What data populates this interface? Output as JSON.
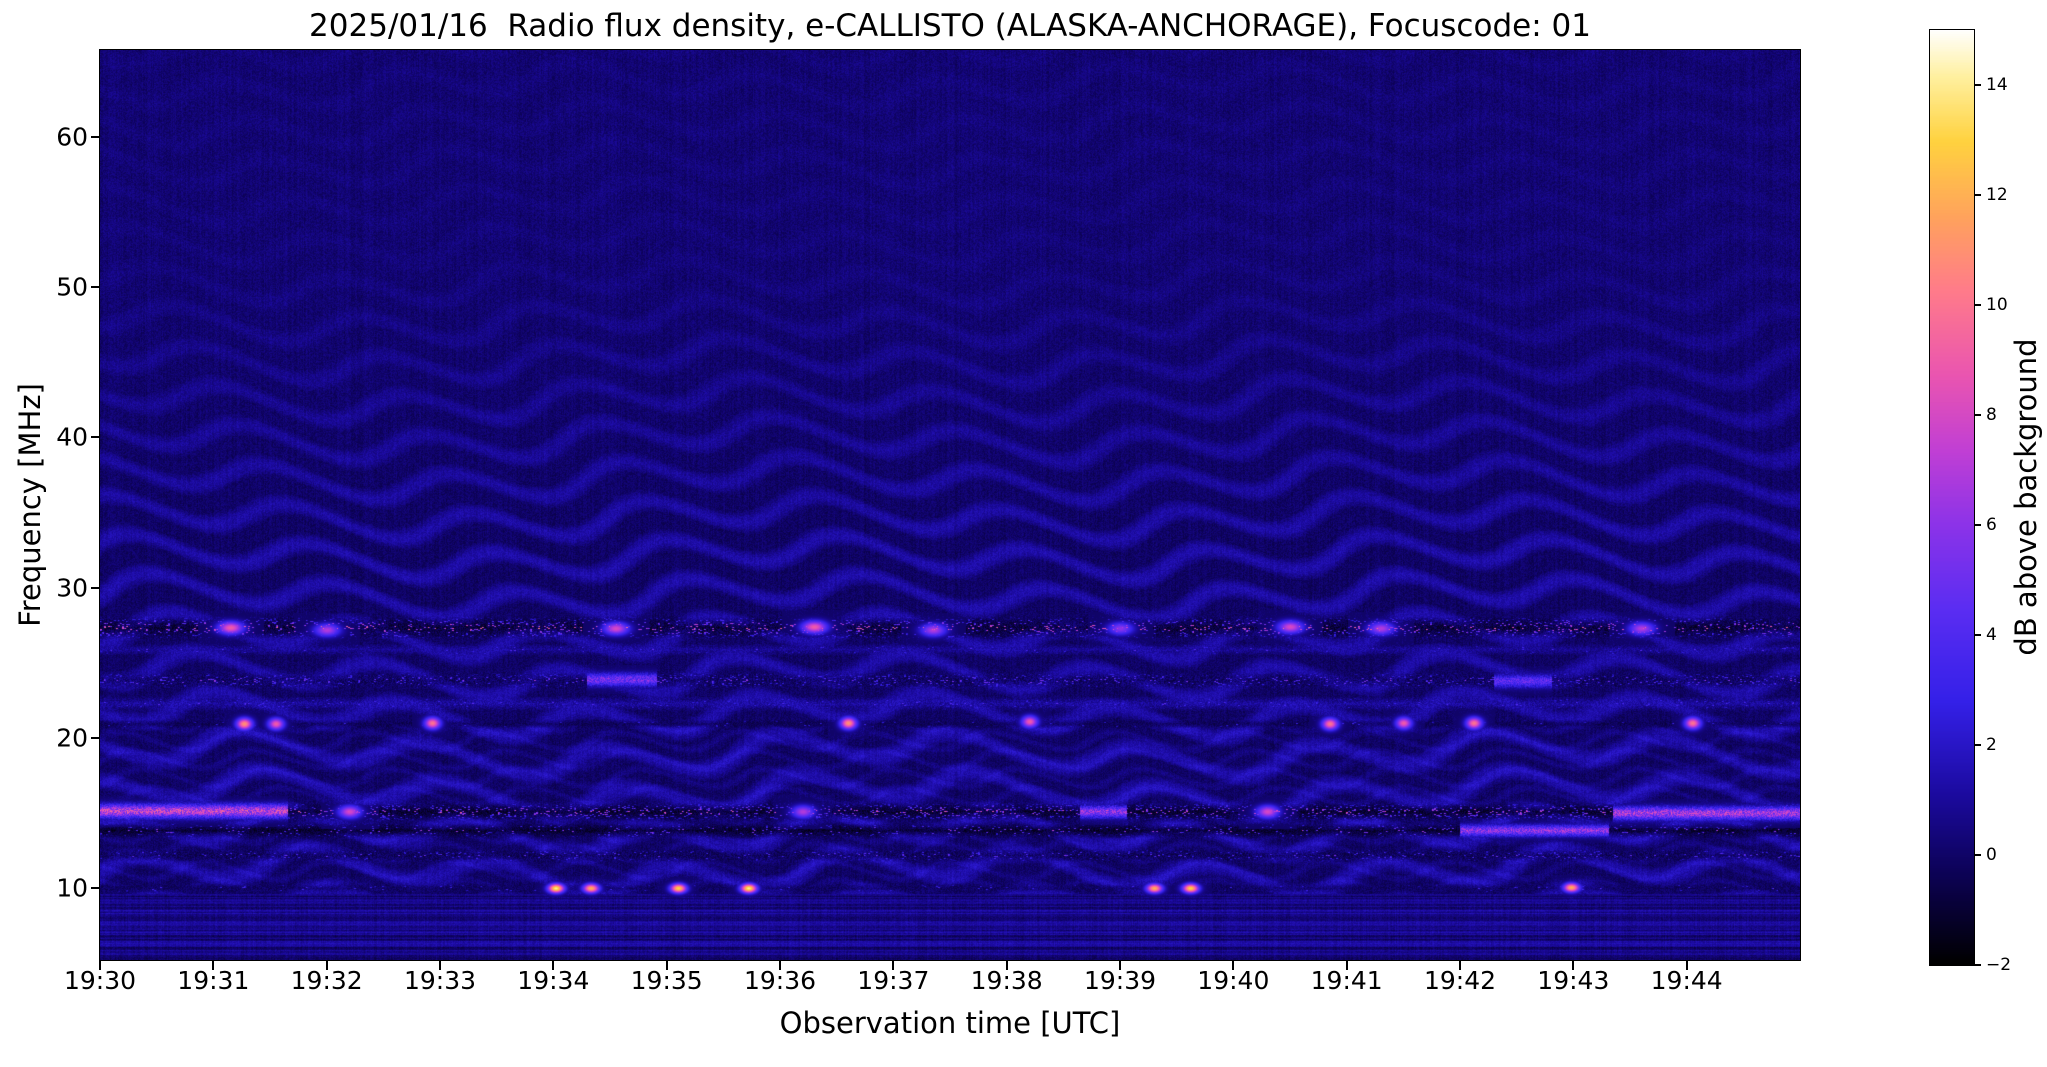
{
  "window": {
    "background": "#ffffff",
    "text_color": "#000000"
  },
  "chart_data": {
    "type": "heatmap",
    "subtype": "radio-spectrogram",
    "title": "2025/01/16  Radio flux density, e-CALLISTO (ALASKA-ANCHORAGE), Focuscode: 01",
    "xlabel": "Observation time [UTC]",
    "ylabel": "Frequency [MHz]",
    "x_ticks": [
      "19:30",
      "19:31",
      "19:32",
      "19:33",
      "19:34",
      "19:35",
      "19:36",
      "19:37",
      "19:38",
      "19:39",
      "19:40",
      "19:41",
      "19:42",
      "19:43",
      "19:44"
    ],
    "x_span_minutes": 15,
    "xlim_utc": [
      "19:30",
      "19:45"
    ],
    "y_ticks": [
      10,
      20,
      30,
      40,
      50,
      60
    ],
    "ylim_mhz": [
      5.2,
      65.8
    ],
    "grid": false,
    "colorbar": {
      "label": "dB above background",
      "vmin": -2,
      "vmax": 15,
      "ticks": [
        14,
        12,
        10,
        8,
        6,
        4,
        2,
        0,
        -2
      ],
      "tick_labels": [
        "14",
        "12",
        "10",
        "8",
        "6",
        "4",
        "2",
        "0",
        "−2"
      ]
    },
    "colormap": {
      "name": "gnuplot2-like",
      "stops": [
        [
          0.0,
          "#000000"
        ],
        [
          0.1,
          "#0d0259"
        ],
        [
          0.18,
          "#1b0a9e"
        ],
        [
          0.28,
          "#3420e8"
        ],
        [
          0.38,
          "#5b2df2"
        ],
        [
          0.47,
          "#8c33e8"
        ],
        [
          0.55,
          "#c13fd4"
        ],
        [
          0.63,
          "#ea55b0"
        ],
        [
          0.72,
          "#ff7b8a"
        ],
        [
          0.8,
          "#ffa35c"
        ],
        [
          0.88,
          "#ffd23f"
        ],
        [
          0.95,
          "#fff0a0"
        ],
        [
          1.0,
          "#ffffff"
        ]
      ]
    },
    "background_level_db": 0.3,
    "features": {
      "description": "Quiet background (~0 dB, dark blue) with wavy ionospheric interference fringes below ~35 MHz, horizontal terrestrial RFI bands near 27.3, 23.8, 21, 15.1, 13.9 and 12.2 MHz, striated noise below ~9.5 MHz, and point-like station bursts at 10 and 21 MHz.",
      "bands": [
        {
          "f_mhz": 27.35,
          "hw_mhz": 0.75,
          "base_db": -1.7,
          "noise_db": 1.8,
          "speckle_p": 0.1,
          "speckle_db": [
            3,
            11
          ]
        },
        {
          "f_mhz": 25.9,
          "hw_mhz": 0.4,
          "base_db": 0.3,
          "noise_db": 1.3,
          "speckle_p": 0.02,
          "speckle_db": [
            2,
            5
          ]
        },
        {
          "f_mhz": 23.85,
          "hw_mhz": 0.55,
          "base_db": -0.9,
          "noise_db": 1.7,
          "speckle_p": 0.08,
          "speckle_db": [
            2,
            7
          ]
        },
        {
          "f_mhz": 22.3,
          "hw_mhz": 0.5,
          "base_db": 0.4,
          "noise_db": 1.5,
          "speckle_p": 0.03,
          "speckle_db": [
            2,
            5
          ]
        },
        {
          "f_mhz": 20.95,
          "hw_mhz": 0.3,
          "base_db": -0.9,
          "noise_db": 1.1,
          "speckle_p": 0.012,
          "speckle_db": [
            2,
            4
          ]
        },
        {
          "f_mhz": 15.1,
          "hw_mhz": 0.6,
          "base_db": -1.8,
          "noise_db": 1.5,
          "speckle_p": 0.13,
          "speckle_db": [
            2,
            10
          ]
        },
        {
          "f_mhz": 13.85,
          "hw_mhz": 0.5,
          "base_db": -1.8,
          "noise_db": 1.4,
          "speckle_p": 0.05,
          "speckle_db": [
            2,
            8
          ]
        },
        {
          "f_mhz": 12.2,
          "hw_mhz": 0.45,
          "base_db": -1.0,
          "noise_db": 1.6,
          "speckle_p": 0.05,
          "speckle_db": [
            2,
            6
          ]
        },
        {
          "f_mhz": 10.0,
          "hw_mhz": 0.3,
          "base_db": -0.7,
          "noise_db": 1.2,
          "speckle_p": 0.02,
          "speckle_db": [
            2,
            5
          ]
        }
      ],
      "segments": [
        {
          "t0_min": 0.0,
          "t1_min": 1.65,
          "f_mhz": 15.15,
          "db": 10,
          "h_mhz": 0.32
        },
        {
          "t0_min": 8.65,
          "t1_min": 9.05,
          "f_mhz": 15.1,
          "db": 8,
          "h_mhz": 0.28
        },
        {
          "t0_min": 13.35,
          "t1_min": 15.0,
          "f_mhz": 15.0,
          "db": 9,
          "h_mhz": 0.3
        },
        {
          "t0_min": 12.0,
          "t1_min": 13.3,
          "f_mhz": 13.85,
          "db": 8,
          "h_mhz": 0.26
        },
        {
          "t0_min": 4.3,
          "t1_min": 4.9,
          "f_mhz": 23.9,
          "db": 7,
          "h_mhz": 0.3
        },
        {
          "t0_min": 12.3,
          "t1_min": 12.8,
          "f_mhz": 23.8,
          "db": 6,
          "h_mhz": 0.3
        }
      ],
      "spots": [
        {
          "t_min": 4.02,
          "f_mhz": 10.0,
          "db": 14,
          "w_min": 0.05,
          "h_mhz": 0.22
        },
        {
          "t_min": 4.33,
          "f_mhz": 10.0,
          "db": 12,
          "w_min": 0.05,
          "h_mhz": 0.22
        },
        {
          "t_min": 5.1,
          "f_mhz": 10.0,
          "db": 13,
          "w_min": 0.05,
          "h_mhz": 0.22
        },
        {
          "t_min": 5.72,
          "f_mhz": 10.0,
          "db": 14,
          "w_min": 0.05,
          "h_mhz": 0.22
        },
        {
          "t_min": 9.3,
          "f_mhz": 10.0,
          "db": 12,
          "w_min": 0.05,
          "h_mhz": 0.22
        },
        {
          "t_min": 9.62,
          "f_mhz": 10.0,
          "db": 13,
          "w_min": 0.05,
          "h_mhz": 0.22
        },
        {
          "t_min": 12.98,
          "f_mhz": 10.05,
          "db": 12,
          "w_min": 0.05,
          "h_mhz": 0.22
        },
        {
          "t_min": 1.27,
          "f_mhz": 20.95,
          "db": 11,
          "w_min": 0.05,
          "h_mhz": 0.28
        },
        {
          "t_min": 1.55,
          "f_mhz": 20.95,
          "db": 9,
          "w_min": 0.05,
          "h_mhz": 0.28
        },
        {
          "t_min": 2.93,
          "f_mhz": 21.0,
          "db": 10,
          "w_min": 0.05,
          "h_mhz": 0.28
        },
        {
          "t_min": 6.6,
          "f_mhz": 21.0,
          "db": 11,
          "w_min": 0.05,
          "h_mhz": 0.28
        },
        {
          "t_min": 8.2,
          "f_mhz": 21.1,
          "db": 9,
          "w_min": 0.05,
          "h_mhz": 0.28
        },
        {
          "t_min": 10.85,
          "f_mhz": 20.95,
          "db": 10,
          "w_min": 0.05,
          "h_mhz": 0.28
        },
        {
          "t_min": 11.5,
          "f_mhz": 21.0,
          "db": 9,
          "w_min": 0.05,
          "h_mhz": 0.28
        },
        {
          "t_min": 12.12,
          "f_mhz": 21.0,
          "db": 10,
          "w_min": 0.05,
          "h_mhz": 0.28
        },
        {
          "t_min": 14.05,
          "f_mhz": 21.0,
          "db": 10,
          "w_min": 0.05,
          "h_mhz": 0.28
        },
        {
          "t_min": 1.15,
          "f_mhz": 27.35,
          "db": 9,
          "w_min": 0.08,
          "h_mhz": 0.3
        },
        {
          "t_min": 2.0,
          "f_mhz": 27.2,
          "db": 7,
          "w_min": 0.08,
          "h_mhz": 0.3
        },
        {
          "t_min": 4.55,
          "f_mhz": 27.3,
          "db": 8,
          "w_min": 0.08,
          "h_mhz": 0.3
        },
        {
          "t_min": 6.3,
          "f_mhz": 27.4,
          "db": 9,
          "w_min": 0.08,
          "h_mhz": 0.3
        },
        {
          "t_min": 7.35,
          "f_mhz": 27.2,
          "db": 7,
          "w_min": 0.08,
          "h_mhz": 0.3
        },
        {
          "t_min": 9.0,
          "f_mhz": 27.3,
          "db": 6,
          "w_min": 0.08,
          "h_mhz": 0.3
        },
        {
          "t_min": 10.5,
          "f_mhz": 27.4,
          "db": 8,
          "w_min": 0.08,
          "h_mhz": 0.3
        },
        {
          "t_min": 11.3,
          "f_mhz": 27.3,
          "db": 7,
          "w_min": 0.08,
          "h_mhz": 0.3
        },
        {
          "t_min": 13.6,
          "f_mhz": 27.3,
          "db": 7,
          "w_min": 0.08,
          "h_mhz": 0.3
        },
        {
          "t_min": 2.2,
          "f_mhz": 15.1,
          "db": 8,
          "w_min": 0.07,
          "h_mhz": 0.3
        },
        {
          "t_min": 6.2,
          "f_mhz": 15.1,
          "db": 7,
          "w_min": 0.07,
          "h_mhz": 0.3
        },
        {
          "t_min": 10.3,
          "f_mhz": 15.1,
          "db": 8,
          "w_min": 0.07,
          "h_mhz": 0.3
        }
      ]
    }
  }
}
